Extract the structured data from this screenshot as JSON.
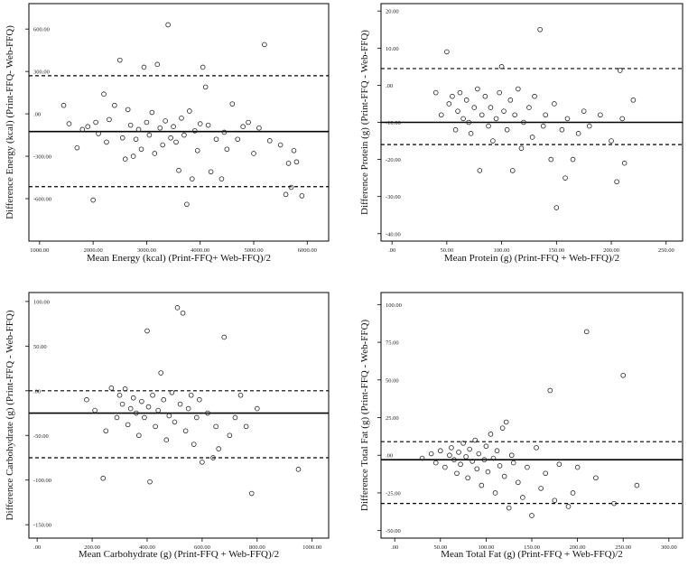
{
  "chart_data": [
    {
      "type": "scatter",
      "panel": "energy",
      "title": "",
      "xlabel": "Mean Energy (kcal) (Print-FFQ+ Web-FFQ)/2",
      "ylabel": "Difference Energy (kcal) (Print-FFQ- Web-FFQ)",
      "xlim": [
        800,
        6400
      ],
      "ylim": [
        -900,
        780
      ],
      "xticks": [
        1000,
        2000,
        3000,
        4000,
        5000,
        6000
      ],
      "xtick_labels": [
        "1000.00",
        "2000.00",
        "3000.00",
        "4000.00",
        "5000.00",
        "6000.00"
      ],
      "yticks": [
        -600,
        -300,
        0,
        300,
        600
      ],
      "ytick_labels": [
        "-600.00",
        "-300.00",
        ".00",
        "300.00",
        "600.00"
      ],
      "mean_difference": -125,
      "upper_limit": 270,
      "lower_limit": -515,
      "points": [
        [
          1450,
          60
        ],
        [
          1550,
          -70
        ],
        [
          1700,
          -240
        ],
        [
          1800,
          -110
        ],
        [
          1900,
          -90
        ],
        [
          2000,
          -610
        ],
        [
          2050,
          -60
        ],
        [
          2100,
          -140
        ],
        [
          2200,
          140
        ],
        [
          2250,
          -200
        ],
        [
          2300,
          -40
        ],
        [
          2400,
          60
        ],
        [
          2500,
          380
        ],
        [
          2550,
          -170
        ],
        [
          2600,
          -320
        ],
        [
          2650,
          30
        ],
        [
          2700,
          -80
        ],
        [
          2750,
          -300
        ],
        [
          2800,
          -180
        ],
        [
          2850,
          -110
        ],
        [
          2900,
          -250
        ],
        [
          2950,
          330
        ],
        [
          3000,
          -60
        ],
        [
          3050,
          -150
        ],
        [
          3100,
          10
        ],
        [
          3150,
          -280
        ],
        [
          3200,
          350
        ],
        [
          3250,
          -100
        ],
        [
          3300,
          -220
        ],
        [
          3350,
          -50
        ],
        [
          3400,
          630
        ],
        [
          3450,
          -170
        ],
        [
          3500,
          -90
        ],
        [
          3550,
          -200
        ],
        [
          3600,
          -400
        ],
        [
          3650,
          -30
        ],
        [
          3700,
          -150
        ],
        [
          3750,
          -640
        ],
        [
          3800,
          20
        ],
        [
          3850,
          -460
        ],
        [
          3900,
          -120
        ],
        [
          3950,
          -260
        ],
        [
          4000,
          -70
        ],
        [
          4050,
          330
        ],
        [
          4100,
          190
        ],
        [
          4150,
          -80
        ],
        [
          4200,
          -410
        ],
        [
          4300,
          -180
        ],
        [
          4400,
          -460
        ],
        [
          4450,
          -130
        ],
        [
          4500,
          -250
        ],
        [
          4600,
          70
        ],
        [
          4700,
          -180
        ],
        [
          4800,
          -90
        ],
        [
          4900,
          -60
        ],
        [
          5000,
          -280
        ],
        [
          5100,
          -100
        ],
        [
          5200,
          490
        ],
        [
          5300,
          -190
        ],
        [
          5500,
          -220
        ],
        [
          5600,
          -570
        ],
        [
          5650,
          -350
        ],
        [
          5700,
          -520
        ],
        [
          5750,
          -260
        ],
        [
          5800,
          -340
        ],
        [
          5900,
          -580
        ]
      ]
    },
    {
      "type": "scatter",
      "panel": "protein",
      "title": "",
      "xlabel": "Mean Protein (g) (Print-FFQ + Web-FFQ)/2",
      "ylabel": "Difference Protein (g) (Print-FFQ - Web-FFQ)",
      "xlim": [
        -10,
        265
      ],
      "ylim": [
        -42,
        22
      ],
      "xticks": [
        0,
        50,
        100,
        150,
        200,
        250
      ],
      "xtick_labels": [
        ".00",
        "50.00",
        "100.00",
        "150.00",
        "200.00",
        "250.00"
      ],
      "yticks": [
        -40,
        -30,
        -20,
        -10,
        0,
        10,
        20
      ],
      "ytick_labels": [
        "-40.00",
        "-30.00",
        "-20.00",
        "-10.00",
        ".00",
        "10.00",
        "20.00"
      ],
      "mean_difference": -10,
      "upper_limit": 4.5,
      "lower_limit": -16,
      "points": [
        [
          40,
          -2
        ],
        [
          45,
          -8
        ],
        [
          50,
          9
        ],
        [
          52,
          -5
        ],
        [
          55,
          -3
        ],
        [
          58,
          -12
        ],
        [
          60,
          -7
        ],
        [
          62,
          -2
        ],
        [
          65,
          -9
        ],
        [
          68,
          -4
        ],
        [
          70,
          -10
        ],
        [
          72,
          -13
        ],
        [
          75,
          -6
        ],
        [
          78,
          -1
        ],
        [
          80,
          -23
        ],
        [
          82,
          -8
        ],
        [
          85,
          -3
        ],
        [
          88,
          -11
        ],
        [
          90,
          -6
        ],
        [
          92,
          -15
        ],
        [
          95,
          -9
        ],
        [
          98,
          -2
        ],
        [
          100,
          5
        ],
        [
          102,
          -7
        ],
        [
          105,
          -12
        ],
        [
          108,
          -4
        ],
        [
          110,
          -23
        ],
        [
          112,
          -8
        ],
        [
          115,
          -1
        ],
        [
          118,
          -17
        ],
        [
          120,
          -10
        ],
        [
          125,
          -6
        ],
        [
          128,
          -14
        ],
        [
          130,
          -3
        ],
        [
          135,
          15
        ],
        [
          138,
          -11
        ],
        [
          140,
          -8
        ],
        [
          145,
          -20
        ],
        [
          148,
          -5
        ],
        [
          150,
          -33
        ],
        [
          155,
          -12
        ],
        [
          158,
          -25
        ],
        [
          160,
          -9
        ],
        [
          165,
          -20
        ],
        [
          170,
          -13
        ],
        [
          175,
          -7
        ],
        [
          180,
          -11
        ],
        [
          190,
          -8
        ],
        [
          200,
          -15
        ],
        [
          205,
          -26
        ],
        [
          208,
          4
        ],
        [
          210,
          -9
        ],
        [
          212,
          -21
        ],
        [
          220,
          -4
        ]
      ]
    },
    {
      "type": "scatter",
      "panel": "carbohydrate",
      "title": "",
      "xlabel": "Mean Carbohydrate (g) (Print-FFQ + Web-FFQ)/2",
      "ylabel": "Difference Carbohydrate (g) (Print-FFQ - Web-FFQ)",
      "xlim": [
        -30,
        1060
      ],
      "ylim": [
        -165,
        110
      ],
      "xticks": [
        0,
        200,
        400,
        600,
        800,
        1000
      ],
      "xtick_labels": [
        ".00",
        "200.00",
        "400.00",
        "600.00",
        "800.00",
        "1000.00"
      ],
      "yticks": [
        -150,
        -100,
        -50,
        0,
        50,
        100
      ],
      "ytick_labels": [
        "-150.00",
        "-100.00",
        "-50.00",
        ".00",
        "50.00",
        "100.00"
      ],
      "mean_difference": -25,
      "upper_limit": 0,
      "lower_limit": -75,
      "points": [
        [
          180,
          -10
        ],
        [
          210,
          -22
        ],
        [
          240,
          -98
        ],
        [
          250,
          -45
        ],
        [
          270,
          3
        ],
        [
          290,
          -30
        ],
        [
          300,
          -5
        ],
        [
          310,
          -15
        ],
        [
          320,
          2
        ],
        [
          330,
          -38
        ],
        [
          340,
          -20
        ],
        [
          350,
          -8
        ],
        [
          360,
          -25
        ],
        [
          370,
          -50
        ],
        [
          380,
          -12
        ],
        [
          390,
          -30
        ],
        [
          400,
          67
        ],
        [
          405,
          -18
        ],
        [
          410,
          -102
        ],
        [
          420,
          -5
        ],
        [
          430,
          -40
        ],
        [
          440,
          -22
        ],
        [
          450,
          20
        ],
        [
          460,
          -10
        ],
        [
          470,
          -55
        ],
        [
          480,
          -28
        ],
        [
          490,
          -2
        ],
        [
          500,
          -35
        ],
        [
          510,
          93
        ],
        [
          520,
          -15
        ],
        [
          530,
          87
        ],
        [
          540,
          -45
        ],
        [
          550,
          -20
        ],
        [
          560,
          -5
        ],
        [
          570,
          -60
        ],
        [
          580,
          -30
        ],
        [
          590,
          -10
        ],
        [
          600,
          -80
        ],
        [
          620,
          -25
        ],
        [
          640,
          -75
        ],
        [
          650,
          -40
        ],
        [
          660,
          -65
        ],
        [
          680,
          60
        ],
        [
          700,
          -50
        ],
        [
          720,
          -30
        ],
        [
          740,
          -5
        ],
        [
          760,
          -40
        ],
        [
          780,
          -115
        ],
        [
          800,
          -20
        ],
        [
          950,
          -88
        ]
      ]
    },
    {
      "type": "scatter",
      "panel": "total-fat",
      "title": "",
      "xlabel": "Mean Total Fat (g) (Print-FFQ + Web-FFQ)/2",
      "ylabel": "Difference Total Fat (g) (Print-FFQ - Web-FFQ)",
      "xlim": [
        -15,
        315
      ],
      "ylim": [
        -55,
        108
      ],
      "xticks": [
        0,
        50,
        100,
        150,
        200,
        250,
        300
      ],
      "xtick_labels": [
        ".00",
        "50.00",
        "100.00",
        "150.00",
        "200.00",
        "250.00",
        "300.00"
      ],
      "yticks": [
        -50,
        -25,
        0,
        25,
        50,
        75,
        100
      ],
      "ytick_labels": [
        "-50.00",
        "-25.00",
        ".00",
        "25.00",
        "50.00",
        "75.00",
        "100.00"
      ],
      "mean_difference": -3,
      "upper_limit": 9,
      "lower_limit": -32,
      "points": [
        [
          30,
          -2
        ],
        [
          40,
          1
        ],
        [
          45,
          -5
        ],
        [
          50,
          3
        ],
        [
          55,
          -8
        ],
        [
          60,
          0
        ],
        [
          62,
          5
        ],
        [
          65,
          -3
        ],
        [
          68,
          -12
        ],
        [
          70,
          2
        ],
        [
          72,
          -6
        ],
        [
          75,
          8
        ],
        [
          78,
          -1
        ],
        [
          80,
          -15
        ],
        [
          82,
          4
        ],
        [
          85,
          -4
        ],
        [
          88,
          10
        ],
        [
          90,
          -9
        ],
        [
          92,
          1
        ],
        [
          95,
          -20
        ],
        [
          98,
          -3
        ],
        [
          100,
          6
        ],
        [
          102,
          -11
        ],
        [
          105,
          14
        ],
        [
          108,
          -2
        ],
        [
          110,
          -25
        ],
        [
          112,
          3
        ],
        [
          115,
          -7
        ],
        [
          118,
          18
        ],
        [
          120,
          -14
        ],
        [
          122,
          22
        ],
        [
          125,
          -35
        ],
        [
          128,
          0
        ],
        [
          130,
          -5
        ],
        [
          135,
          -18
        ],
        [
          140,
          -28
        ],
        [
          145,
          -8
        ],
        [
          150,
          -40
        ],
        [
          155,
          5
        ],
        [
          160,
          -22
        ],
        [
          165,
          -12
        ],
        [
          170,
          43
        ],
        [
          175,
          -30
        ],
        [
          180,
          -6
        ],
        [
          190,
          -34
        ],
        [
          195,
          -25
        ],
        [
          200,
          -8
        ],
        [
          210,
          82
        ],
        [
          220,
          -15
        ],
        [
          240,
          -32
        ],
        [
          250,
          53
        ],
        [
          265,
          -20
        ]
      ]
    }
  ]
}
